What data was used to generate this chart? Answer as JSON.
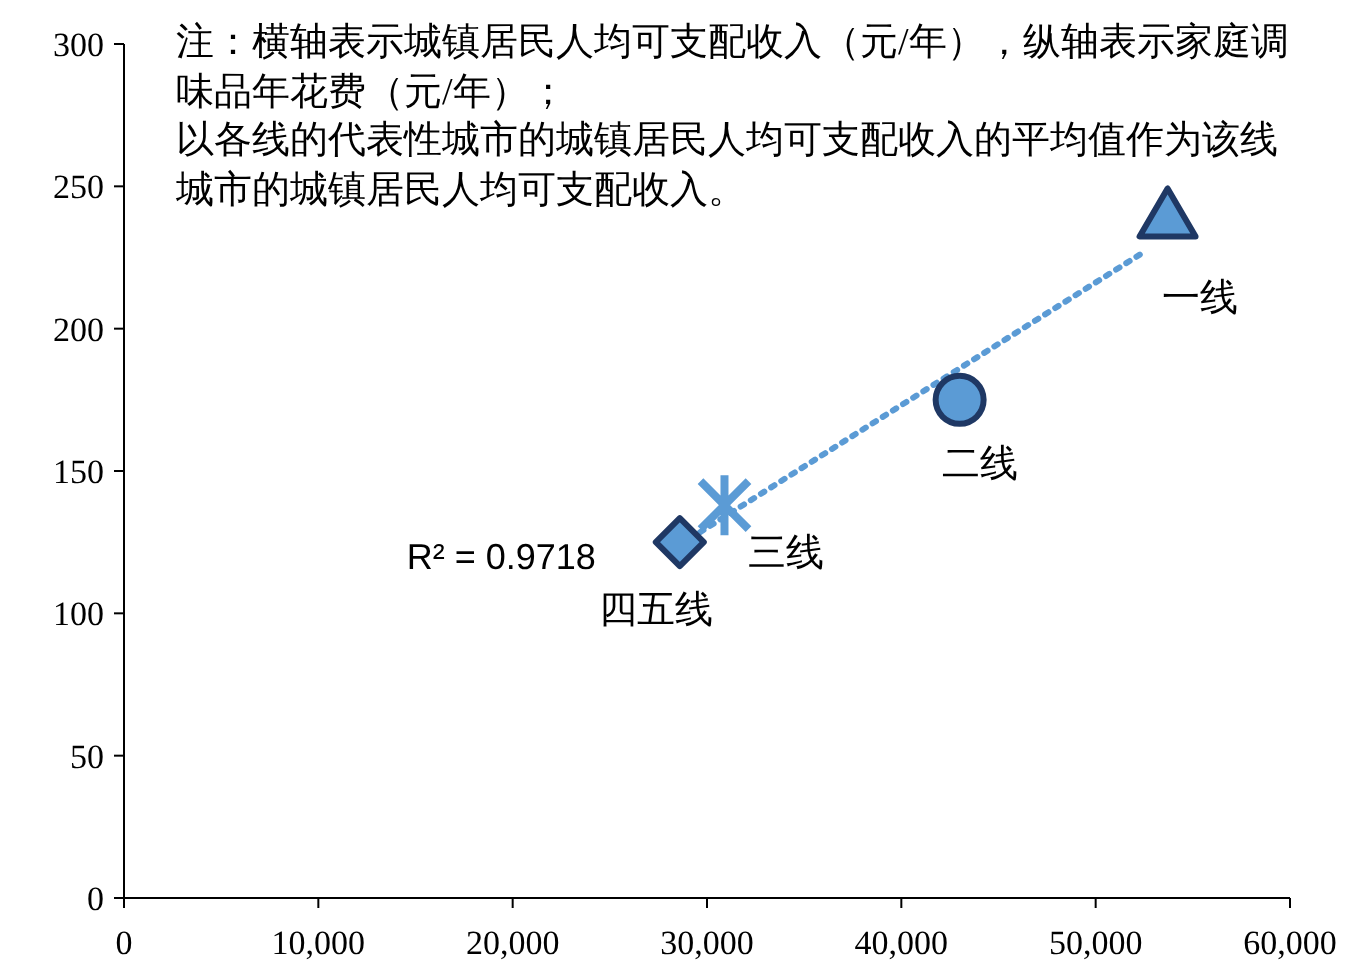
{
  "chart_data": {
    "type": "scatter",
    "xlim": [
      0,
      60000
    ],
    "ylim": [
      0,
      300
    ],
    "xticks": [
      0,
      {
        "value": 10000,
        "label": "10,000"
      },
      {
        "value": 20000,
        "label": "20,000"
      },
      {
        "value": 30000,
        "label": "30,000"
      },
      {
        "value": 40000,
        "label": "40,000"
      },
      {
        "value": 50000,
        "label": "50,000"
      },
      {
        "value": 60000,
        "label": "60,000"
      }
    ],
    "yticks": [
      0,
      50,
      100,
      150,
      200,
      250,
      300
    ],
    "grid": false,
    "series": [
      {
        "name": "一线",
        "color": "#5b9bd5",
        "marker": "triangle",
        "x": [
          53700
        ],
        "values": [
          238
        ]
      },
      {
        "name": "二线",
        "color": "#5b9bd5",
        "marker": "circle",
        "x": [
          43000
        ],
        "values": [
          175
        ]
      },
      {
        "name": "三线",
        "color": "#5b9bd5",
        "marker": "cross",
        "x": [
          30900
        ],
        "values": [
          138
        ]
      },
      {
        "name": "四五线",
        "color": "#5b9bd5",
        "marker": "diamond",
        "x": [
          28600
        ],
        "values": [
          125
        ]
      },
      {
        "type": "line",
        "color": "#5b9bd5",
        "line_style": "dotted",
        "x": [
          28600,
          52500
        ],
        "values": [
          124,
          227
        ]
      }
    ],
    "annotations": [
      "注：横轴表示城镇居民人均可支配收入（元/年），纵轴表示家庭调味品年花费（元/年）；",
      "以各线的代表性城市的城镇居民人均可支配收入的平均值作为该线城市的城镇居民人均可支配收入。",
      "R² = 0.9718"
    ]
  }
}
